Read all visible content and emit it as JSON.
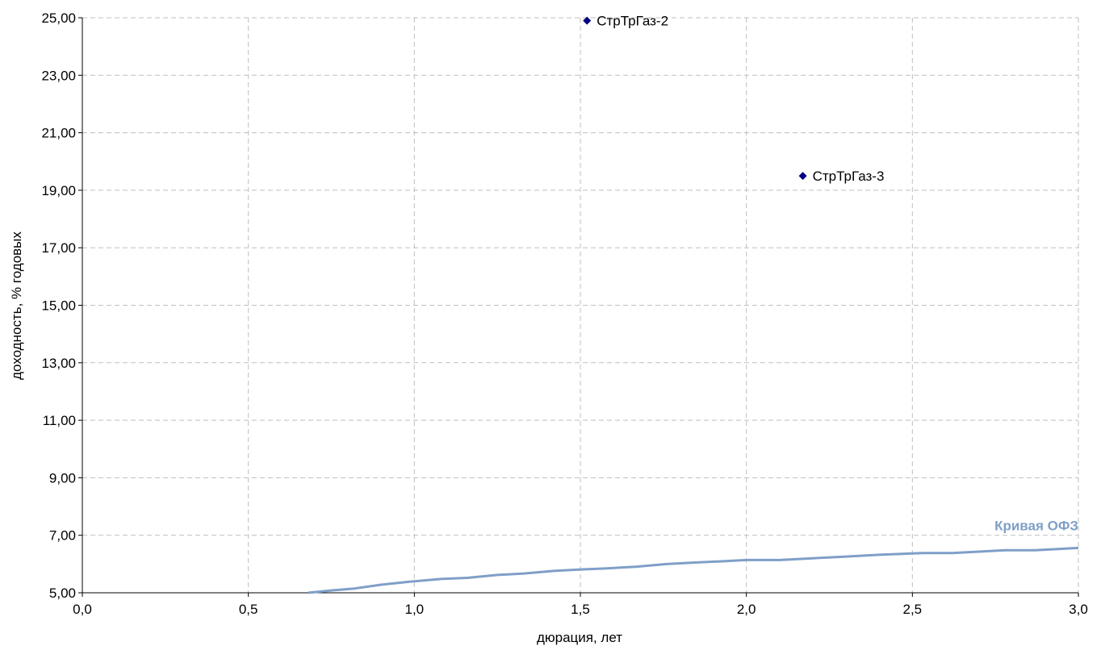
{
  "chart_data": {
    "type": "scatter",
    "xlabel": "дюрация, лет",
    "ylabel": "доходность, % годовых",
    "xlim": [
      0.0,
      3.0
    ],
    "ylim": [
      5.0,
      25.0
    ],
    "x_ticks": [
      "0,0",
      "0,5",
      "1,0",
      "1,5",
      "2,0",
      "2,5",
      "3,0"
    ],
    "x_tick_values": [
      0.0,
      0.5,
      1.0,
      1.5,
      2.0,
      2.5,
      3.0
    ],
    "y_ticks": [
      "5,00",
      "7,00",
      "9,00",
      "11,00",
      "13,00",
      "15,00",
      "17,00",
      "19,00",
      "21,00",
      "23,00",
      "25,00"
    ],
    "y_tick_values": [
      5,
      7,
      9,
      11,
      13,
      15,
      17,
      19,
      21,
      23,
      25
    ],
    "grid": true,
    "points": [
      {
        "label": "СтрТрГаз-2",
        "x": 1.52,
        "y": 24.9
      },
      {
        "label": "СтрТрГаз-3",
        "x": 2.17,
        "y": 19.5
      }
    ],
    "curve": {
      "name": "Кривая ОФЗ",
      "color": "#7f9fc8",
      "x": [
        0.68,
        0.75,
        0.82,
        0.9,
        0.98,
        1.08,
        1.16,
        1.25,
        1.33,
        1.42,
        1.5,
        1.58,
        1.67,
        1.76,
        1.84,
        1.92,
        2.0,
        2.1,
        2.2,
        2.3,
        2.4,
        2.53,
        2.62,
        2.78,
        2.87,
        3.0
      ],
      "y": [
        5.0,
        5.08,
        5.15,
        5.28,
        5.38,
        5.48,
        5.52,
        5.62,
        5.67,
        5.76,
        5.81,
        5.85,
        5.91,
        6.0,
        6.05,
        6.09,
        6.14,
        6.14,
        6.2,
        6.26,
        6.32,
        6.38,
        6.38,
        6.48,
        6.48,
        6.56
      ]
    },
    "point_color": "#000080"
  }
}
